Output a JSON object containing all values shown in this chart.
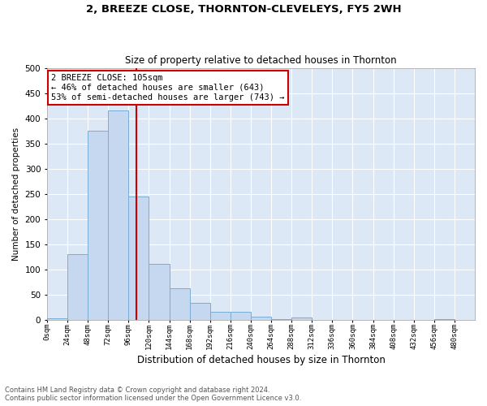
{
  "title": "2, BREEZE CLOSE, THORNTON-CLEVELEYS, FY5 2WH",
  "subtitle": "Size of property relative to detached houses in Thornton",
  "xlabel": "Distribution of detached houses by size in Thornton",
  "ylabel": "Number of detached properties",
  "bar_color": "#c5d8f0",
  "bar_edge_color": "#7aadd4",
  "background_color": "#dce8f5",
  "grid_color": "#ffffff",
  "bins_left": [
    0,
    24,
    48,
    72,
    96,
    120,
    144,
    168,
    192,
    216,
    240,
    264,
    288,
    312,
    336,
    360,
    384,
    408,
    432,
    456
  ],
  "bin_width": 24,
  "values": [
    3,
    130,
    375,
    415,
    245,
    110,
    63,
    33,
    15,
    15,
    6,
    1,
    5,
    0,
    0,
    0,
    0,
    0,
    0,
    1
  ],
  "property_size": 105,
  "vline_color": "#cc0000",
  "annotation_line1": "2 BREEZE CLOSE: 105sqm",
  "annotation_line2": "← 46% of detached houses are smaller (643)",
  "annotation_line3": "53% of semi-detached houses are larger (743) →",
  "annotation_box_color": "#ffffff",
  "annotation_box_edge_color": "#cc0000",
  "ylim": [
    0,
    500
  ],
  "yticks": [
    0,
    50,
    100,
    150,
    200,
    250,
    300,
    350,
    400,
    450,
    500
  ],
  "footer_text": "Contains HM Land Registry data © Crown copyright and database right 2024.\nContains public sector information licensed under the Open Government Licence v3.0.",
  "xtick_labels": [
    "0sqm",
    "24sqm",
    "48sqm",
    "72sqm",
    "96sqm",
    "120sqm",
    "144sqm",
    "168sqm",
    "192sqm",
    "216sqm",
    "240sqm",
    "264sqm",
    "288sqm",
    "312sqm",
    "336sqm",
    "360sqm",
    "384sqm",
    "408sqm",
    "432sqm",
    "456sqm",
    "480sqm"
  ]
}
